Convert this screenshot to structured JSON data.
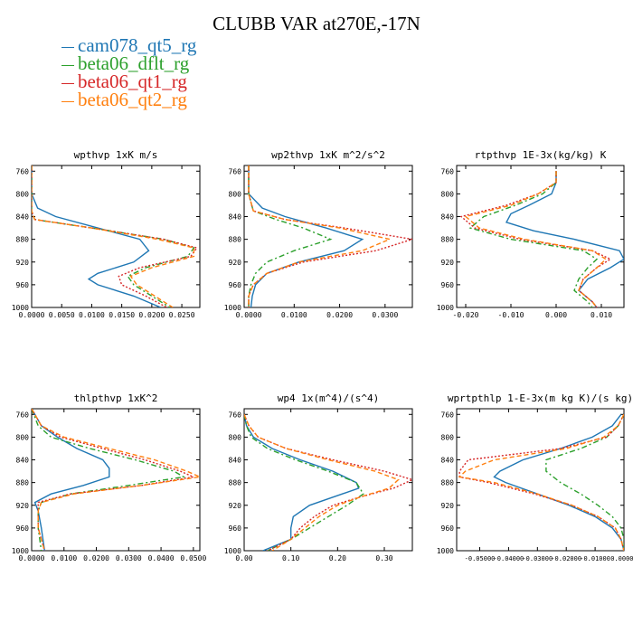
{
  "figure": {
    "title": "CLUBB VAR at270E,-17N"
  },
  "legend": [
    {
      "name": "cam078_qt5_rg",
      "color": "#1f77b4"
    },
    {
      "name": "beta06_dflt_rg",
      "color": "#2ca02c"
    },
    {
      "name": "beta06_qt1_rg",
      "color": "#d62728"
    },
    {
      "name": "beta06_qt2_rg",
      "color": "#ff7f0e"
    }
  ],
  "chart_data": [
    {
      "type": "line",
      "title": "wpthvp  1xK m/s",
      "xlim": [
        0,
        0.028
      ],
      "ylim": [
        1000,
        750
      ],
      "xticks": [
        "0.0000",
        "0.0050",
        "0.0100",
        "0.0150",
        "0.0200",
        "0.0250"
      ],
      "xtick_values": [
        0,
        0.005,
        0.01,
        0.015,
        0.02,
        0.025
      ],
      "yticks": [
        760,
        800,
        840,
        880,
        920,
        960,
        1000
      ],
      "series": [
        {
          "name": "cam078_qt5_rg",
          "y": [
            750,
            800,
            825,
            840,
            860,
            880,
            900,
            920,
            940,
            950,
            960,
            980,
            1000
          ],
          "x": [
            0,
            0,
            0.001,
            0.004,
            0.011,
            0.018,
            0.0195,
            0.017,
            0.011,
            0.0095,
            0.011,
            0.017,
            0.0215
          ]
        },
        {
          "name": "beta06_dflt_rg",
          "y": [
            750,
            800,
            830,
            845,
            860,
            880,
            895,
            910,
            930,
            945,
            960,
            980,
            1000
          ],
          "x": [
            0,
            0,
            0,
            0.0005,
            0.01,
            0.022,
            0.027,
            0.026,
            0.019,
            0.016,
            0.017,
            0.02,
            0.023
          ]
        },
        {
          "name": "beta06_qt1_rg",
          "y": [
            750,
            800,
            830,
            845,
            860,
            880,
            895,
            910,
            930,
            945,
            960,
            980,
            1000
          ],
          "x": [
            0,
            0,
            0,
            0.0005,
            0.01,
            0.022,
            0.0275,
            0.0265,
            0.018,
            0.0145,
            0.015,
            0.019,
            0.0225
          ]
        },
        {
          "name": "beta06_qt2_rg",
          "y": [
            750,
            800,
            830,
            845,
            860,
            880,
            895,
            910,
            930,
            945,
            960,
            980,
            1000
          ],
          "x": [
            0,
            0,
            0,
            0.0005,
            0.01,
            0.021,
            0.027,
            0.027,
            0.02,
            0.0165,
            0.0175,
            0.0205,
            0.0235
          ]
        }
      ]
    },
    {
      "type": "line",
      "title": "wp2thvp  1xK m^2/s^2",
      "xlim": [
        -0.001,
        0.036
      ],
      "ylim": [
        1000,
        750
      ],
      "xticks": [
        "0.0000",
        "0.0100",
        "0.0200",
        "0.0300"
      ],
      "xtick_values": [
        0,
        0.01,
        0.02,
        0.03
      ],
      "yticks": [
        760,
        800,
        840,
        880,
        920,
        960,
        1000
      ],
      "series": [
        {
          "name": "cam078_qt5_rg",
          "y": [
            750,
            800,
            825,
            840,
            860,
            880,
            900,
            920,
            940,
            960,
            980,
            1000
          ],
          "x": [
            0,
            0,
            0.003,
            0.008,
            0.017,
            0.025,
            0.021,
            0.011,
            0.004,
            0.0015,
            0.0008,
            0.0005
          ]
        },
        {
          "name": "beta06_dflt_rg",
          "y": [
            750,
            800,
            830,
            845,
            860,
            880,
            900,
            920,
            940,
            960,
            980,
            1000
          ],
          "x": [
            0,
            0,
            0.001,
            0.006,
            0.012,
            0.018,
            0.01,
            0.004,
            0.0015,
            0.0005,
            0,
            0
          ]
        },
        {
          "name": "beta06_qt1_rg",
          "y": [
            750,
            800,
            830,
            845,
            860,
            880,
            900,
            920,
            940,
            960,
            980,
            1000
          ],
          "x": [
            0,
            0,
            0.001,
            0.008,
            0.021,
            0.036,
            0.028,
            0.012,
            0.004,
            0.001,
            0,
            0
          ]
        },
        {
          "name": "beta06_qt2_rg",
          "y": [
            750,
            800,
            830,
            845,
            860,
            880,
            900,
            920,
            940,
            960,
            980,
            1000
          ],
          "x": [
            0,
            0,
            0.001,
            0.008,
            0.02,
            0.031,
            0.025,
            0.011,
            0.004,
            0.001,
            0,
            0
          ]
        }
      ]
    },
    {
      "type": "line",
      "title": "rtpthvp  1E-3x(kg/kg) K",
      "xlim": [
        -0.022,
        0.015
      ],
      "ylim": [
        1000,
        750
      ],
      "xticks": [
        "-0.020",
        "-0.010",
        "0.000",
        "0.010"
      ],
      "xtick_values": [
        -0.02,
        -0.01,
        0,
        0.01
      ],
      "yticks": [
        760,
        800,
        840,
        880,
        920,
        960,
        1000
      ],
      "series": [
        {
          "name": "cam078_qt5_rg",
          "y": [
            760,
            780,
            800,
            820,
            835,
            850,
            865,
            880,
            900,
            915,
            930,
            950,
            970,
            990,
            1000
          ],
          "x": [
            0,
            0,
            -0.001,
            -0.006,
            -0.01,
            -0.011,
            -0.005,
            0.004,
            0.014,
            0.015,
            0.012,
            0.007,
            0.005,
            0.008,
            0.009
          ]
        },
        {
          "name": "beta06_dflt_rg",
          "y": [
            760,
            780,
            800,
            820,
            840,
            860,
            880,
            900,
            915,
            930,
            950,
            970,
            990,
            1000
          ],
          "x": [
            0,
            0,
            -0.003,
            -0.009,
            -0.016,
            -0.019,
            -0.01,
            0.006,
            0.009,
            0.007,
            0.005,
            0.004,
            0.007,
            0.008
          ]
        },
        {
          "name": "beta06_qt1_rg",
          "y": [
            760,
            780,
            800,
            820,
            840,
            860,
            880,
            900,
            915,
            930,
            950,
            970,
            990,
            1000
          ],
          "x": [
            0,
            0,
            -0.004,
            -0.011,
            -0.021,
            -0.018,
            -0.008,
            0.008,
            0.012,
            0.009,
            0.006,
            0.005,
            0.008,
            0.009
          ]
        },
        {
          "name": "beta06_qt2_rg",
          "y": [
            760,
            780,
            800,
            820,
            840,
            860,
            880,
            900,
            915,
            930,
            950,
            970,
            990,
            1000
          ],
          "x": [
            0,
            0,
            -0.004,
            -0.01,
            -0.02,
            -0.017,
            -0.007,
            0.008,
            0.011,
            0.009,
            0.006,
            0.005,
            0.008,
            0.009
          ]
        }
      ]
    },
    {
      "type": "line",
      "title": "thlpthvp  1xK^2",
      "xlim": [
        0,
        0.052
      ],
      "ylim": [
        1000,
        750
      ],
      "xticks": [
        "0.0000",
        "0.0100",
        "0.0200",
        "0.0300",
        "0.0400",
        "0.0500"
      ],
      "xtick_values": [
        0,
        0.01,
        0.02,
        0.03,
        0.04,
        0.05
      ],
      "yticks": [
        760,
        800,
        840,
        880,
        920,
        960,
        1000
      ],
      "series": [
        {
          "name": "cam078_qt5_rg",
          "y": [
            750,
            780,
            800,
            820,
            840,
            855,
            870,
            885,
            900,
            915,
            930,
            960,
            1000
          ],
          "x": [
            0,
            0.003,
            0.008,
            0.014,
            0.022,
            0.024,
            0.024,
            0.016,
            0.006,
            0.001,
            0.002,
            0.003,
            0.004
          ]
        },
        {
          "name": "beta06_dflt_rg",
          "y": [
            750,
            780,
            800,
            820,
            840,
            860,
            870,
            885,
            900,
            915,
            930,
            960,
            1000
          ],
          "x": [
            0,
            0.002,
            0.006,
            0.018,
            0.032,
            0.044,
            0.047,
            0.03,
            0.012,
            0.003,
            0.002,
            0.002,
            0.003
          ]
        },
        {
          "name": "beta06_qt1_rg",
          "y": [
            750,
            780,
            800,
            820,
            840,
            860,
            870,
            885,
            900,
            915,
            930,
            960,
            1000
          ],
          "x": [
            0,
            0.003,
            0.009,
            0.022,
            0.035,
            0.046,
            0.05,
            0.034,
            0.012,
            0.002,
            0.002,
            0.002,
            0.004
          ]
        },
        {
          "name": "beta06_qt2_rg",
          "y": [
            750,
            780,
            800,
            820,
            840,
            860,
            870,
            885,
            900,
            915,
            930,
            960,
            1000
          ],
          "x": [
            0,
            0.003,
            0.01,
            0.024,
            0.038,
            0.048,
            0.052,
            0.034,
            0.013,
            0.003,
            0.002,
            0.002,
            0.004
          ]
        }
      ]
    },
    {
      "type": "line",
      "title": "wp4  1x(m^4)/(s^4)",
      "xlim": [
        0,
        0.36
      ],
      "ylim": [
        1000,
        750
      ],
      "xticks": [
        "0.00",
        "0.10",
        "0.20",
        "0.30"
      ],
      "xtick_values": [
        0,
        0.1,
        0.2,
        0.3
      ],
      "yticks": [
        760,
        800,
        840,
        880,
        920,
        960,
        1000
      ],
      "series": [
        {
          "name": "cam078_qt5_rg",
          "y": [
            760,
            780,
            800,
            820,
            840,
            860,
            880,
            890,
            900,
            920,
            940,
            960,
            980,
            1000
          ],
          "x": [
            0,
            0.005,
            0.02,
            0.06,
            0.12,
            0.19,
            0.24,
            0.245,
            0.21,
            0.14,
            0.105,
            0.1,
            0.1,
            0.04
          ]
        },
        {
          "name": "beta06_dflt_rg",
          "y": [
            760,
            780,
            800,
            820,
            840,
            860,
            880,
            900,
            920,
            940,
            960,
            980,
            1000
          ],
          "x": [
            0,
            0.005,
            0.015,
            0.05,
            0.11,
            0.18,
            0.24,
            0.255,
            0.22,
            0.18,
            0.14,
            0.1,
            0.05
          ]
        },
        {
          "name": "beta06_qt1_rg",
          "y": [
            760,
            780,
            800,
            820,
            840,
            860,
            875,
            890,
            905,
            920,
            940,
            960,
            980,
            1000
          ],
          "x": [
            0,
            0.01,
            0.03,
            0.09,
            0.19,
            0.3,
            0.36,
            0.32,
            0.25,
            0.19,
            0.15,
            0.12,
            0.1,
            0.05
          ]
        },
        {
          "name": "beta06_qt2_rg",
          "y": [
            760,
            780,
            800,
            820,
            840,
            860,
            875,
            890,
            905,
            920,
            940,
            960,
            980,
            1000
          ],
          "x": [
            0,
            0.01,
            0.03,
            0.09,
            0.18,
            0.28,
            0.33,
            0.31,
            0.25,
            0.2,
            0.16,
            0.13,
            0.1,
            0.06
          ]
        }
      ]
    },
    {
      "type": "line",
      "title": "wprtpthlp  1-E-3x(m kg K)/(s kg)",
      "xlim": [
        -0.058,
        0
      ],
      "ylim": [
        1000,
        750
      ],
      "xticks": [
        "-0.05000",
        "-0.04000",
        "-0.03000",
        "-0.02000",
        "-0.01000",
        "0.00000"
      ],
      "xtick_values": [
        -0.05,
        -0.04,
        -0.03,
        -0.02,
        -0.01,
        0
      ],
      "yticks": [
        760,
        800,
        840,
        880,
        920,
        960,
        1000
      ],
      "series": [
        {
          "name": "cam078_qt5_rg",
          "y": [
            760,
            780,
            800,
            820,
            840,
            860,
            870,
            880,
            900,
            920,
            940,
            960,
            980,
            1000
          ],
          "x": [
            -0.001,
            -0.004,
            -0.011,
            -0.022,
            -0.035,
            -0.043,
            -0.045,
            -0.041,
            -0.03,
            -0.019,
            -0.01,
            -0.004,
            -0.001,
            0
          ]
        },
        {
          "name": "beta06_dflt_rg",
          "y": [
            760,
            780,
            800,
            820,
            840,
            860,
            880,
            900,
            920,
            940,
            960,
            980,
            1000
          ],
          "x": [
            0,
            -0.002,
            -0.006,
            -0.015,
            -0.027,
            -0.027,
            -0.022,
            -0.015,
            -0.009,
            -0.004,
            -0.001,
            0,
            0
          ]
        },
        {
          "name": "beta06_qt1_rg",
          "y": [
            760,
            780,
            800,
            820,
            840,
            860,
            870,
            880,
            900,
            920,
            940,
            960,
            980,
            1000
          ],
          "x": [
            0,
            -0.002,
            -0.006,
            -0.022,
            -0.054,
            -0.057,
            -0.057,
            -0.047,
            -0.031,
            -0.018,
            -0.009,
            -0.003,
            -0.001,
            0
          ]
        },
        {
          "name": "beta06_qt2_rg",
          "y": [
            760,
            780,
            800,
            820,
            840,
            860,
            870,
            880,
            900,
            920,
            940,
            960,
            980,
            1000
          ],
          "x": [
            0,
            -0.002,
            -0.007,
            -0.02,
            -0.045,
            -0.055,
            -0.057,
            -0.045,
            -0.03,
            -0.018,
            -0.009,
            -0.003,
            -0.001,
            0
          ]
        }
      ]
    }
  ]
}
